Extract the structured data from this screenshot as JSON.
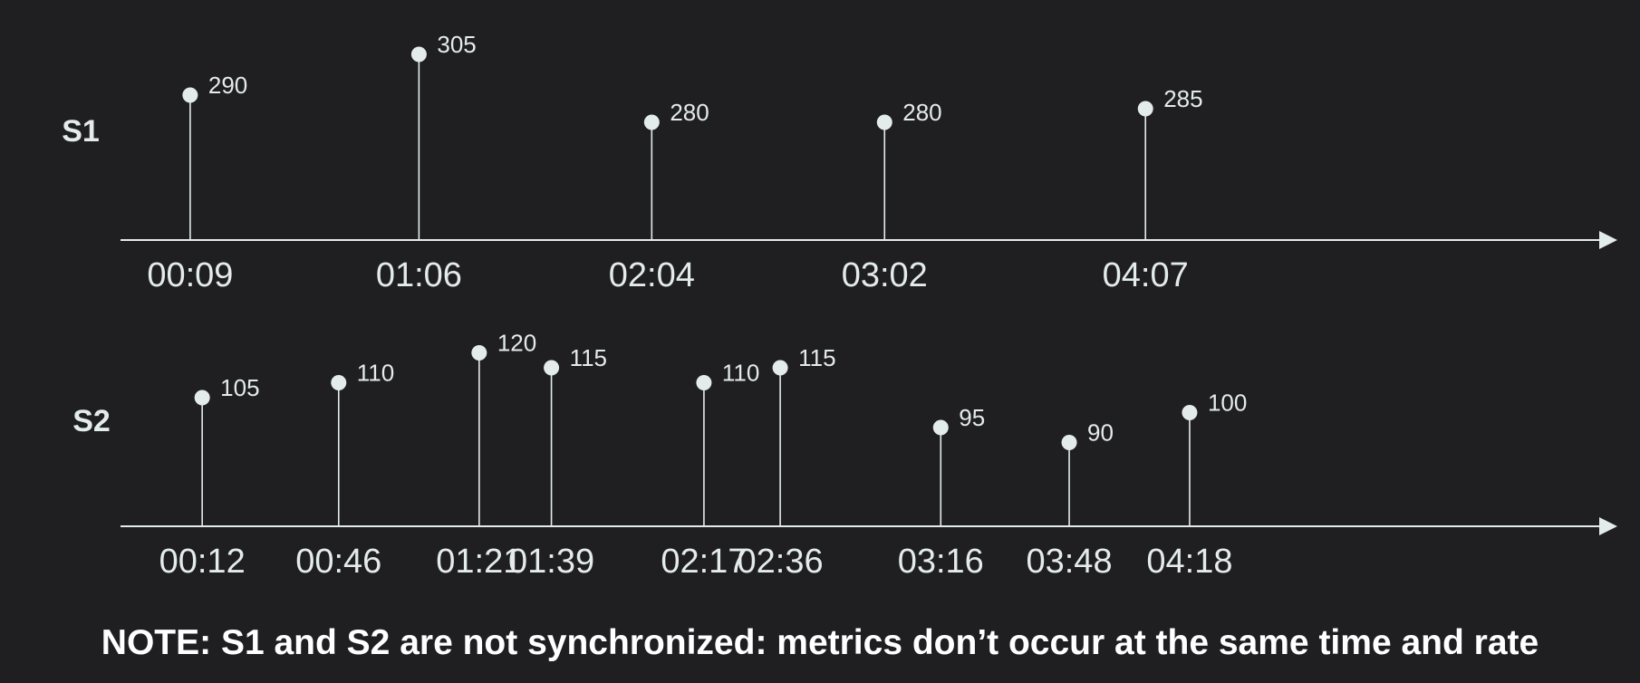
{
  "chart_data": {
    "type": "scatter",
    "series": [
      {
        "name": "S1",
        "x": [
          "00:09",
          "01:06",
          "02:04",
          "03:02",
          "04:07"
        ],
        "values": [
          290,
          305,
          280,
          280,
          285
        ]
      },
      {
        "name": "S2",
        "x": [
          "00:12",
          "00:46",
          "01:21",
          "01:39",
          "02:17",
          "02:36",
          "03:16",
          "03:48",
          "04:18"
        ],
        "values": [
          105,
          110,
          120,
          115,
          110,
          115,
          95,
          90,
          100
        ]
      }
    ],
    "note": "NOTE: S1 and S2 are not synchronized: metrics don’t occur at the same time and rate",
    "colors": {
      "background": "#1f1f22",
      "foreground": "#e4ebeb"
    }
  }
}
